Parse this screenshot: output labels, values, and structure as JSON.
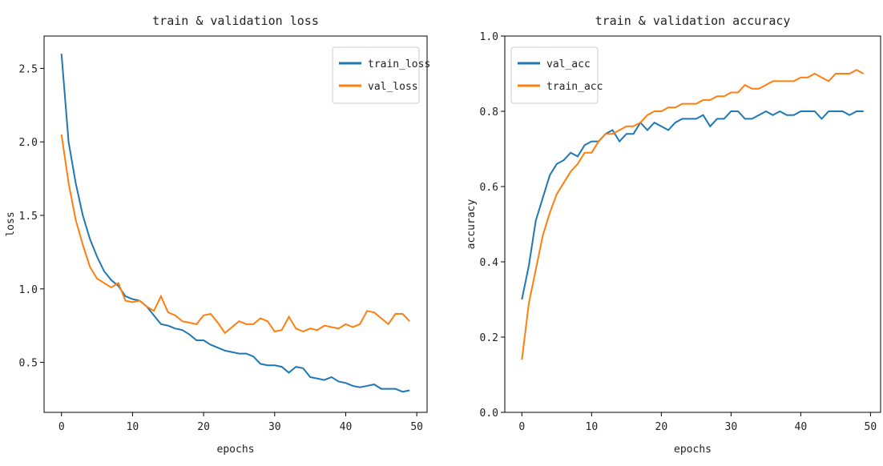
{
  "chart_data": [
    {
      "type": "line",
      "title": "train & validation loss",
      "xlabel": "epochs",
      "ylabel": "loss",
      "x": [
        0,
        1,
        2,
        3,
        4,
        5,
        6,
        7,
        8,
        9,
        10,
        11,
        12,
        13,
        14,
        15,
        16,
        17,
        18,
        19,
        20,
        21,
        22,
        23,
        24,
        25,
        26,
        27,
        28,
        29,
        30,
        31,
        32,
        33,
        34,
        35,
        36,
        37,
        38,
        39,
        40,
        41,
        42,
        43,
        44,
        45,
        46,
        47,
        48,
        49
      ],
      "series": [
        {
          "name": "train_loss",
          "color": "#1f77b4",
          "values": [
            2.6,
            2.0,
            1.72,
            1.5,
            1.34,
            1.22,
            1.12,
            1.06,
            1.02,
            0.95,
            0.93,
            0.92,
            0.88,
            0.82,
            0.76,
            0.75,
            0.73,
            0.72,
            0.69,
            0.65,
            0.65,
            0.62,
            0.6,
            0.58,
            0.57,
            0.56,
            0.56,
            0.54,
            0.49,
            0.48,
            0.48,
            0.47,
            0.43,
            0.47,
            0.46,
            0.4,
            0.39,
            0.38,
            0.4,
            0.37,
            0.36,
            0.34,
            0.33,
            0.34,
            0.35,
            0.32,
            0.32,
            0.32,
            0.3,
            0.31
          ]
        },
        {
          "name": "val_loss",
          "color": "#ff7f0e",
          "values": [
            2.05,
            1.72,
            1.47,
            1.3,
            1.15,
            1.07,
            1.04,
            1.01,
            1.04,
            0.92,
            0.91,
            0.92,
            0.88,
            0.85,
            0.95,
            0.84,
            0.82,
            0.78,
            0.77,
            0.76,
            0.82,
            0.83,
            0.77,
            0.7,
            0.74,
            0.78,
            0.76,
            0.76,
            0.8,
            0.78,
            0.71,
            0.72,
            0.81,
            0.73,
            0.71,
            0.73,
            0.72,
            0.75,
            0.74,
            0.73,
            0.76,
            0.74,
            0.76,
            0.85,
            0.84,
            0.8,
            0.76,
            0.83,
            0.83,
            0.78
          ]
        }
      ],
      "xlim": [
        -2.45,
        51.45
      ],
      "xticks": [
        0,
        10,
        20,
        30,
        40,
        50
      ],
      "ylim": [
        0.16,
        2.72
      ],
      "yticks": [
        0.5,
        {
          "value": 1.0,
          "label": "1.0"
        },
        1.5,
        {
          "value": 2.0,
          "label": "2.0"
        },
        2.5
      ],
      "legend": "upper right"
    },
    {
      "type": "line",
      "title": "train & validation accuracy",
      "xlabel": "epochs",
      "ylabel": "accuracy",
      "x": [
        0,
        1,
        2,
        3,
        4,
        5,
        6,
        7,
        8,
        9,
        10,
        11,
        12,
        13,
        14,
        15,
        16,
        17,
        18,
        19,
        20,
        21,
        22,
        23,
        24,
        25,
        26,
        27,
        28,
        29,
        30,
        31,
        32,
        33,
        34,
        35,
        36,
        37,
        38,
        39,
        40,
        41,
        42,
        43,
        44,
        45,
        46,
        47,
        48,
        49
      ],
      "series": [
        {
          "name": "val_acc",
          "color": "#1f77b4",
          "values": [
            0.3,
            0.39,
            0.51,
            0.57,
            0.63,
            0.66,
            0.67,
            0.69,
            0.68,
            0.71,
            0.72,
            0.72,
            0.74,
            0.75,
            0.72,
            0.74,
            0.74,
            0.77,
            0.75,
            0.77,
            0.76,
            0.75,
            0.77,
            0.78,
            0.78,
            0.78,
            0.79,
            0.76,
            0.78,
            0.78,
            0.8,
            0.8,
            0.78,
            0.78,
            0.79,
            0.8,
            0.79,
            0.8,
            0.79,
            0.79,
            0.8,
            0.8,
            0.8,
            0.78,
            0.8,
            0.8,
            0.8,
            0.79,
            0.8,
            0.8
          ]
        },
        {
          "name": "train_acc",
          "color": "#ff7f0e",
          "values": [
            0.14,
            0.29,
            0.38,
            0.47,
            0.53,
            0.58,
            0.61,
            0.64,
            0.66,
            0.69,
            0.69,
            0.72,
            0.74,
            0.74,
            0.75,
            0.76,
            0.76,
            0.77,
            0.79,
            0.8,
            0.8,
            0.81,
            0.81,
            0.82,
            0.82,
            0.82,
            0.83,
            0.83,
            0.84,
            0.84,
            0.85,
            0.85,
            0.87,
            0.86,
            0.86,
            0.87,
            0.88,
            0.88,
            0.88,
            0.88,
            0.89,
            0.89,
            0.9,
            0.89,
            0.88,
            0.9,
            0.9,
            0.9,
            0.91,
            0.9
          ]
        }
      ],
      "xlim": [
        -2.45,
        51.45
      ],
      "xticks": [
        0,
        10,
        20,
        30,
        40,
        50
      ],
      "ylim": [
        0,
        1
      ],
      "yticks": [
        {
          "value": 0,
          "label": "0.0"
        },
        0.2,
        0.4,
        0.6,
        0.8,
        {
          "value": 1,
          "label": "1.0"
        }
      ],
      "legend": "upper left"
    }
  ]
}
